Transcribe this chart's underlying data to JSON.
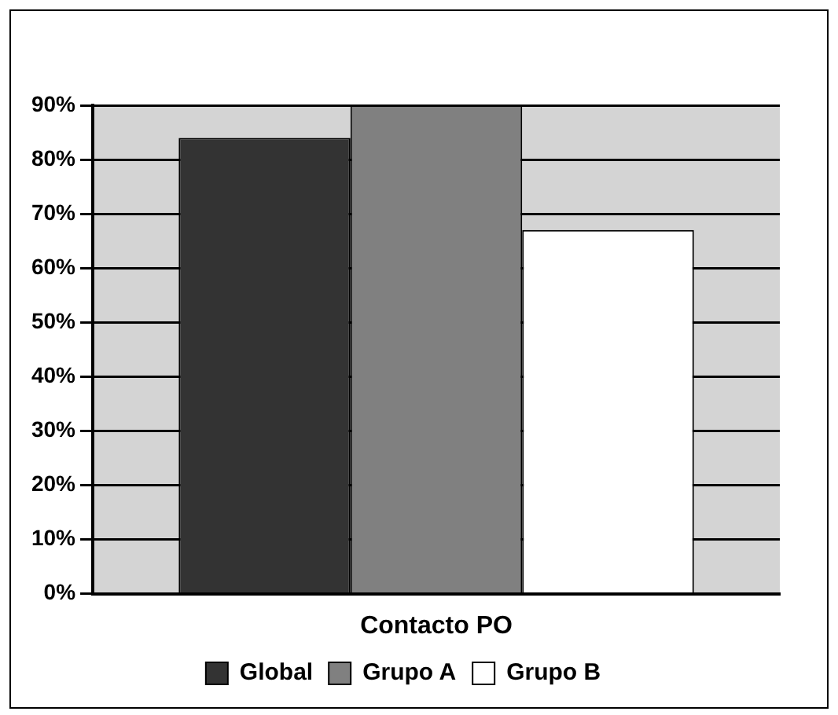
{
  "chart_data": {
    "type": "bar",
    "categories": [
      "Contacto PO"
    ],
    "series": [
      {
        "name": "Global",
        "color": "#333333",
        "values": [
          84
        ]
      },
      {
        "name": "Grupo A",
        "color": "#808080",
        "values": [
          90
        ]
      },
      {
        "name": "Grupo B",
        "color": "#ffffff",
        "values": [
          67
        ]
      }
    ],
    "ylim": [
      0,
      90
    ],
    "yticks": [
      {
        "value": 0,
        "label": "0%"
      },
      {
        "value": 10,
        "label": "10%"
      },
      {
        "value": 20,
        "label": "20%"
      },
      {
        "value": 30,
        "label": "30%"
      },
      {
        "value": 40,
        "label": "40%"
      },
      {
        "value": 50,
        "label": "50%"
      },
      {
        "value": 60,
        "label": "60%"
      },
      {
        "value": 70,
        "label": "70%"
      },
      {
        "value": 80,
        "label": "80%"
      },
      {
        "value": 90,
        "label": "90%"
      }
    ],
    "grid": "y",
    "legend": "bottom"
  }
}
